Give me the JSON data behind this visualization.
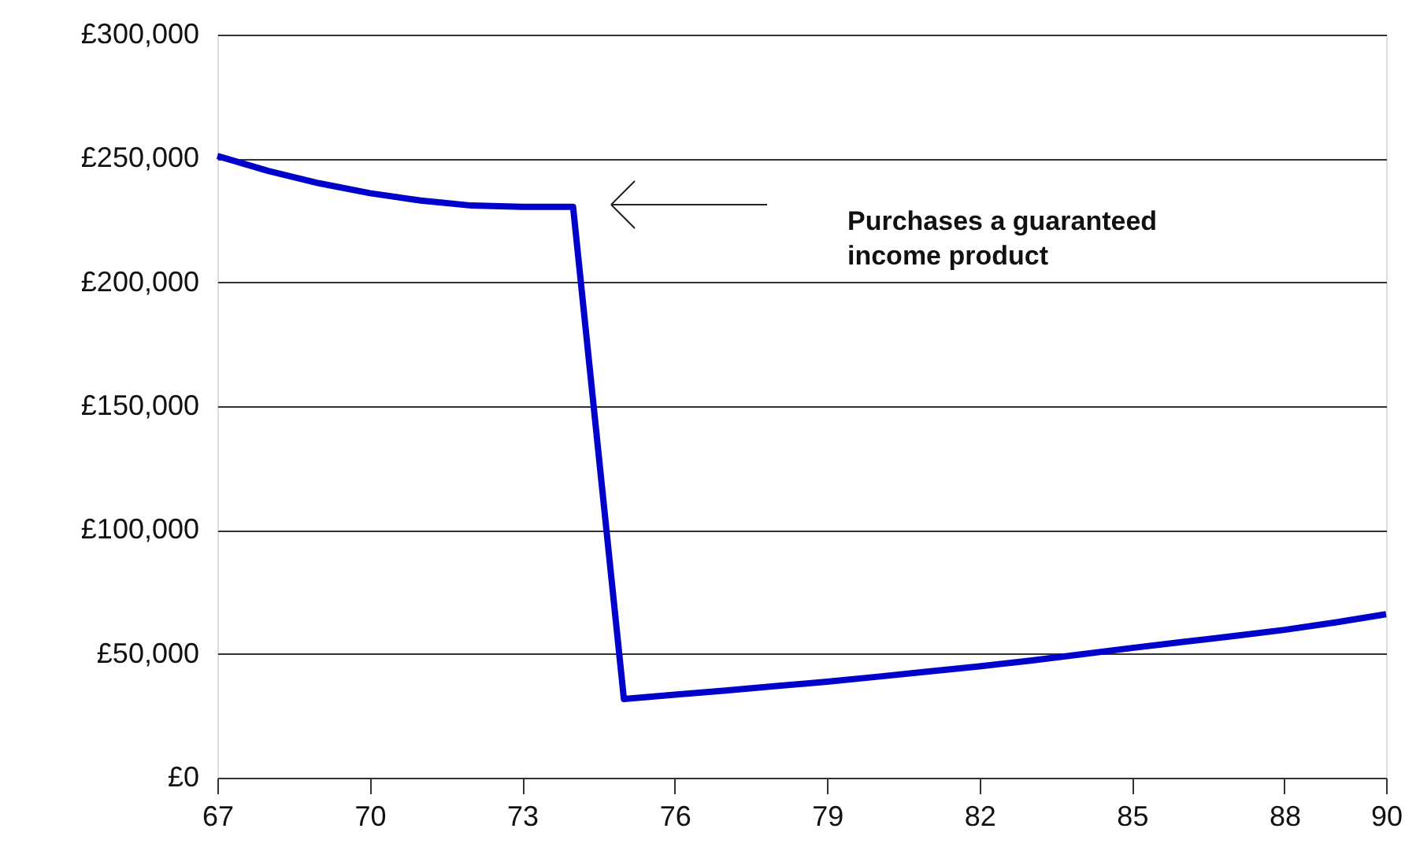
{
  "chart_data": {
    "type": "line",
    "x": [
      67,
      68,
      69,
      70,
      71,
      72,
      73,
      74,
      75,
      76,
      77,
      78,
      79,
      80,
      81,
      82,
      83,
      84,
      85,
      86,
      87,
      88,
      89,
      90
    ],
    "series": [
      {
        "color": "#0000cc",
        "values": [
          251000,
          245000,
          240000,
          236000,
          233000,
          231000,
          230500,
          230500,
          31800,
          33500,
          35200,
          37000,
          38800,
          40800,
          42900,
          45000,
          47300,
          49800,
          52400,
          54800,
          57200,
          59700,
          62700,
          66000
        ]
      }
    ],
    "xlim": [
      67,
      90
    ],
    "xticks": [
      67,
      70,
      73,
      76,
      79,
      82,
      85,
      88,
      90
    ],
    "ylim": [
      0,
      300000
    ],
    "yticks": [
      {
        "value": 0,
        "label": "£0"
      },
      {
        "value": 50000,
        "label": "£50,000"
      },
      {
        "value": 100000,
        "label": "£100,000"
      },
      {
        "value": 150000,
        "label": "£150,000"
      },
      {
        "value": 200000,
        "label": "£200,000"
      },
      {
        "value": 250000,
        "label": "£250,000"
      },
      {
        "value": 300000,
        "label": "£300,000"
      }
    ],
    "grid": "y",
    "marker": "none",
    "line_style": "solid",
    "annotations": [
      "Purchases a guaranteed income product"
    ]
  }
}
